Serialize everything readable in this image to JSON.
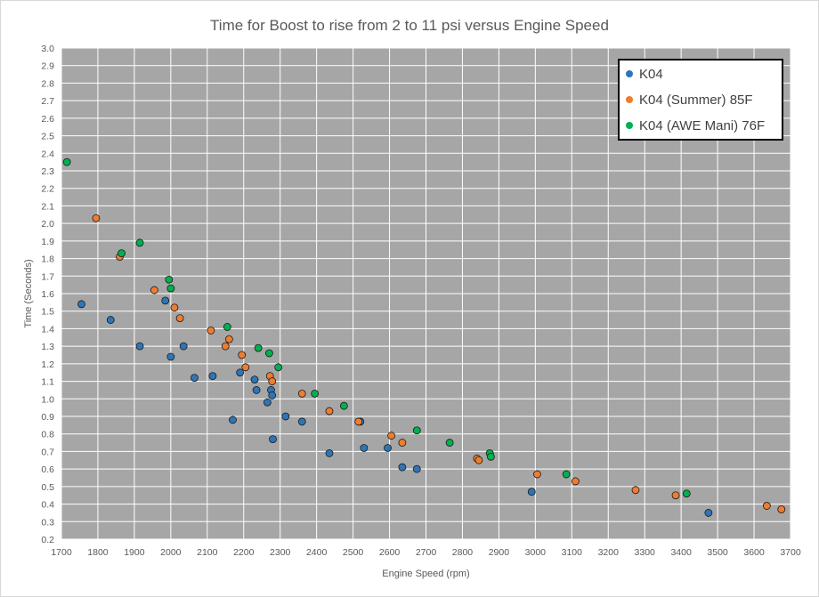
{
  "chart_data": {
    "type": "scatter",
    "title": "Time for Boost to rise from 2 to 11 psi versus Engine Speed",
    "xlabel": "Engine Speed (rpm)",
    "ylabel": "Time (Seconds)",
    "xlim": [
      1700,
      3700
    ],
    "ylim": [
      0.2,
      3.0
    ],
    "x_ticks": [
      "1700",
      "1800",
      "1900",
      "2000",
      "2100",
      "2200",
      "2300",
      "2400",
      "2500",
      "2600",
      "2700",
      "2800",
      "2900",
      "3000",
      "3100",
      "3200",
      "3300",
      "3400",
      "3500",
      "3600",
      "3700"
    ],
    "y_ticks": [
      "0.2",
      "0.3",
      "0.4",
      "0.5",
      "0.6",
      "0.7",
      "0.8",
      "0.9",
      "1.0",
      "1.1",
      "1.2",
      "1.3",
      "1.4",
      "1.5",
      "1.6",
      "1.7",
      "1.8",
      "1.9",
      "2.0",
      "2.1",
      "2.2",
      "2.3",
      "2.4",
      "2.5",
      "2.6",
      "2.7",
      "2.8",
      "2.9",
      "3.0"
    ],
    "grid": true,
    "plot_background": "#a6a6a6",
    "gridline_color": "#ffffff",
    "legend_position": "top-right",
    "series": [
      {
        "name": "K04",
        "color": "#2e75b6",
        "points": [
          [
            1755,
            1.54
          ],
          [
            1835,
            1.45
          ],
          [
            1915,
            1.3
          ],
          [
            1985,
            1.56
          ],
          [
            2000,
            1.24
          ],
          [
            2035,
            1.3
          ],
          [
            2065,
            1.12
          ],
          [
            2115,
            1.13
          ],
          [
            2170,
            0.88
          ],
          [
            2190,
            1.15
          ],
          [
            2230,
            1.11
          ],
          [
            2235,
            1.05
          ],
          [
            2265,
            0.98
          ],
          [
            2275,
            1.05
          ],
          [
            2278,
            1.02
          ],
          [
            2280,
            0.77
          ],
          [
            2315,
            0.9
          ],
          [
            2360,
            0.87
          ],
          [
            2435,
            0.69
          ],
          [
            2520,
            0.87
          ],
          [
            2530,
            0.72
          ],
          [
            2595,
            0.72
          ],
          [
            2635,
            0.61
          ],
          [
            2675,
            0.6
          ],
          [
            2990,
            0.47
          ],
          [
            3475,
            0.35
          ]
        ]
      },
      {
        "name": "K04 (Summer) 85F",
        "color": "#ed7d31",
        "points": [
          [
            1795,
            2.03
          ],
          [
            1860,
            1.81
          ],
          [
            1955,
            1.62
          ],
          [
            2010,
            1.52
          ],
          [
            2025,
            1.46
          ],
          [
            2110,
            1.39
          ],
          [
            2150,
            1.3
          ],
          [
            2160,
            1.34
          ],
          [
            2195,
            1.25
          ],
          [
            2205,
            1.18
          ],
          [
            2272,
            1.13
          ],
          [
            2278,
            1.1
          ],
          [
            2360,
            1.03
          ],
          [
            2435,
            0.93
          ],
          [
            2515,
            0.87
          ],
          [
            2605,
            0.79
          ],
          [
            2635,
            0.75
          ],
          [
            2840,
            0.66
          ],
          [
            2845,
            0.65
          ],
          [
            3005,
            0.57
          ],
          [
            3110,
            0.53
          ],
          [
            3275,
            0.48
          ],
          [
            3385,
            0.45
          ],
          [
            3635,
            0.39
          ],
          [
            3675,
            0.37
          ]
        ]
      },
      {
        "name": "K04 (AWE Mani) 76F",
        "color": "#00b050",
        "points": [
          [
            1715,
            2.35
          ],
          [
            1865,
            1.83
          ],
          [
            1915,
            1.89
          ],
          [
            1995,
            1.68
          ],
          [
            2000,
            1.63
          ],
          [
            2155,
            1.41
          ],
          [
            2240,
            1.29
          ],
          [
            2270,
            1.26
          ],
          [
            2295,
            1.18
          ],
          [
            2395,
            1.03
          ],
          [
            2475,
            0.96
          ],
          [
            2675,
            0.82
          ],
          [
            2765,
            0.75
          ],
          [
            2875,
            0.69
          ],
          [
            2878,
            0.67
          ],
          [
            3085,
            0.57
          ],
          [
            3415,
            0.46
          ]
        ]
      }
    ]
  }
}
